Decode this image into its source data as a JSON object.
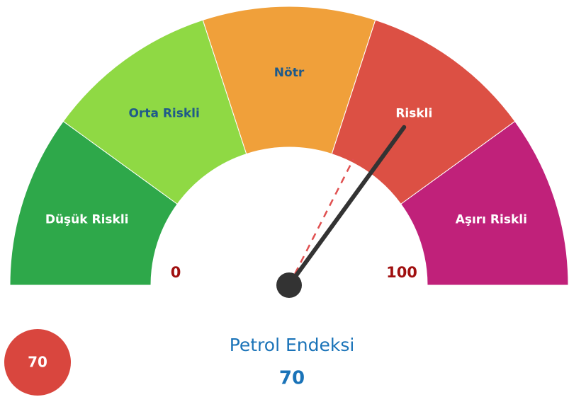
{
  "chart_data": {
    "type": "gauge",
    "title": "Petrol Endeksi",
    "min": 0,
    "max": 100,
    "value": 70,
    "reference_value": 65,
    "bands": [
      {
        "name": "Düşük Riskli",
        "color": "#2ea84a",
        "label_color": "#ffffff",
        "from": 0,
        "to": 20
      },
      {
        "name": "Orta Riskli",
        "color": "#8fd944",
        "label_color": "#1f5a8a",
        "from": 20,
        "to": 40
      },
      {
        "name": "Nötr",
        "color": "#f0a03a",
        "label_color": "#1f5a8a",
        "from": 40,
        "to": 60
      },
      {
        "name": "Riskli",
        "color": "#dc5044",
        "label_color": "#ffffff",
        "from": 60,
        "to": 80
      },
      {
        "name": "Aşırı Riskli",
        "color": "#c0217a",
        "label_color": "#ffffff",
        "from": 80,
        "to": 100
      }
    ],
    "needle_color": "#333333",
    "reference_color": "#e05050",
    "badge_color": "#d9463e",
    "title_color": "#1a73b8",
    "scale_label_color": "#a01010"
  }
}
